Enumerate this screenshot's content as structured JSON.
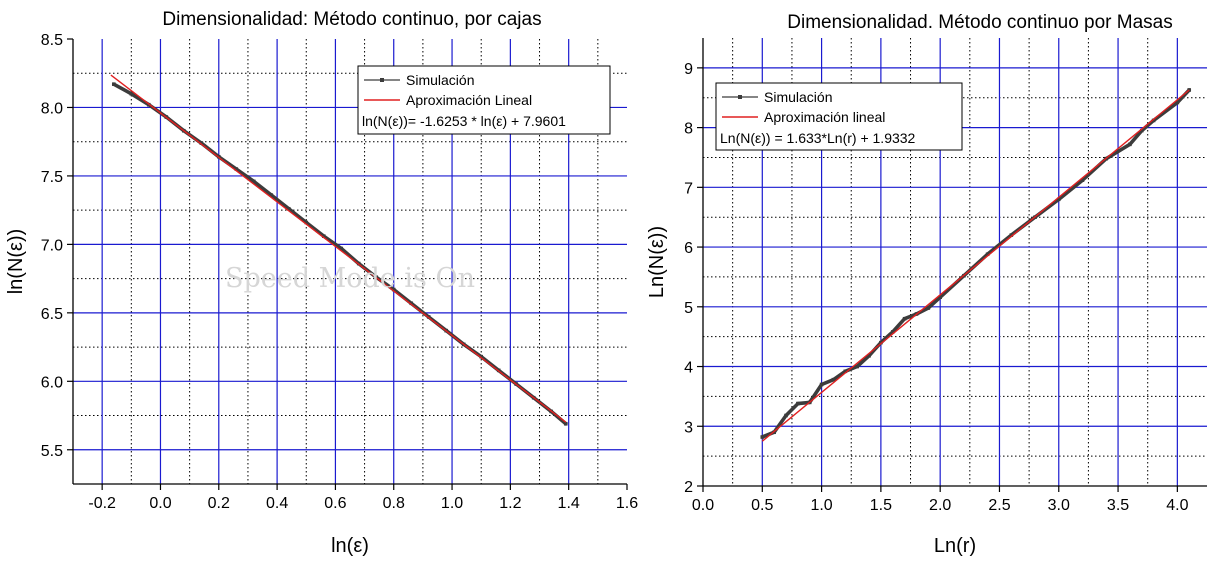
{
  "watermark": "Speed Mode is On",
  "chart_data": [
    {
      "type": "line",
      "title": "Dimensionalidad: Método continuo, por cajas",
      "xlabel": "ln(ε)",
      "ylabel": "ln(N(ε))",
      "xlim": [
        -0.3,
        1.6
      ],
      "ylim": [
        5.25,
        8.5
      ],
      "xticks": [
        -0.2,
        0.0,
        0.2,
        0.4,
        0.6,
        0.8,
        1.0,
        1.2,
        1.4,
        1.6
      ],
      "xtick_labels": [
        "-0.2",
        "0.0",
        "0.2",
        "0.4",
        "0.6",
        "0.8",
        "1.0",
        "1.2",
        "1.4",
        "1.6"
      ],
      "yticks": [
        5.5,
        6.0,
        6.5,
        7.0,
        7.5,
        8.0,
        8.5
      ],
      "ytick_labels": [
        "5.5",
        "6.0",
        "6.5",
        "7.0",
        "7.5",
        "8.0",
        "8.5"
      ],
      "grid": true,
      "grid_color": "#1a1ad0",
      "legend_position": "top-right",
      "series": [
        {
          "name": "Simulación",
          "color": "#3c3c3c",
          "x": [
            -0.16,
            -0.1,
            -0.04,
            0.02,
            0.08,
            0.14,
            0.2,
            0.26,
            0.32,
            0.38,
            0.44,
            0.5,
            0.56,
            0.62,
            0.68,
            0.74,
            0.8,
            0.86,
            0.92,
            0.98,
            1.04,
            1.1,
            1.16,
            1.22,
            1.28,
            1.34,
            1.39
          ],
          "y": [
            8.17,
            8.1,
            8.02,
            7.93,
            7.83,
            7.74,
            7.64,
            7.55,
            7.46,
            7.36,
            7.26,
            7.16,
            7.06,
            6.97,
            6.86,
            6.76,
            6.67,
            6.57,
            6.47,
            6.37,
            6.27,
            6.18,
            6.08,
            5.98,
            5.88,
            5.78,
            5.69
          ]
        },
        {
          "name": "Aproximación Lineal",
          "color": "#e02020",
          "x": [
            -0.17,
            1.39
          ],
          "y": [
            8.236,
            5.701
          ]
        }
      ],
      "annotation": "ln(N(ε))= -1.6253 * ln(ε) + 7.9601"
    },
    {
      "type": "line",
      "title": "Dimensionalidad. Método continuo por Masas",
      "xlabel": "Ln(r)",
      "ylabel": "Ln(N(ε))",
      "xlim": [
        0.0,
        4.25
      ],
      "ylim": [
        2.0,
        9.5
      ],
      "xticks": [
        0.0,
        0.5,
        1.0,
        1.5,
        2.0,
        2.5,
        3.0,
        3.5,
        4.0
      ],
      "xtick_labels": [
        "0.0",
        "0.5",
        "1.0",
        "1.5",
        "2.0",
        "2.5",
        "3.0",
        "3.5",
        "4.0"
      ],
      "yticks": [
        2,
        3,
        4,
        5,
        6,
        7,
        8,
        9
      ],
      "ytick_labels": [
        "2",
        "3",
        "4",
        "5",
        "6",
        "7",
        "8",
        "9"
      ],
      "grid": true,
      "grid_color": "#1a1ad0",
      "legend_position": "top-left",
      "series": [
        {
          "name": "Simulación",
          "color": "#3c3c3c",
          "x": [
            0.5,
            0.6,
            0.7,
            0.8,
            0.9,
            1.0,
            1.1,
            1.2,
            1.3,
            1.4,
            1.5,
            1.6,
            1.7,
            1.8,
            1.9,
            2.0,
            2.2,
            2.4,
            2.6,
            2.8,
            3.0,
            3.2,
            3.4,
            3.6,
            3.7,
            3.8,
            4.0,
            4.1
          ],
          "y": [
            2.82,
            2.9,
            3.18,
            3.38,
            3.4,
            3.7,
            3.78,
            3.92,
            4.0,
            4.18,
            4.4,
            4.58,
            4.8,
            4.88,
            4.98,
            5.16,
            5.52,
            5.88,
            6.2,
            6.5,
            6.8,
            7.12,
            7.48,
            7.72,
            7.95,
            8.12,
            8.42,
            8.63
          ]
        },
        {
          "name": "Aproximación lineal",
          "color": "#e02020",
          "x": [
            0.5,
            4.1
          ],
          "y": [
            2.75,
            8.63
          ]
        }
      ],
      "annotation": "Ln(N(ε)) = 1.633*Ln(r) + 1.9332"
    }
  ]
}
